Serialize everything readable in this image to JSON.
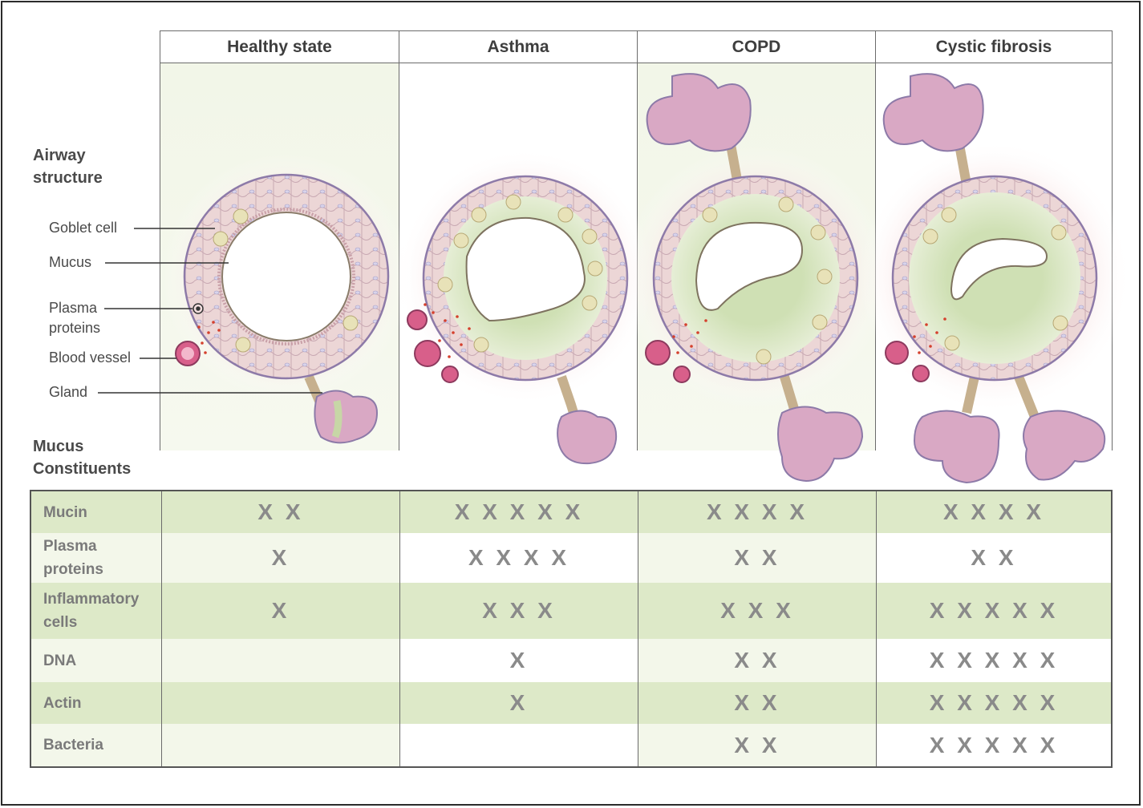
{
  "columns": [
    "Healthy state",
    "Asthma",
    "COPD",
    "Cystic fibrosis"
  ],
  "section_labels": {
    "airway": "Airway\nstructure",
    "constituents": "Mucus\nConstituents"
  },
  "annotations": {
    "goblet": "Goblet cell",
    "mucus": "Mucus",
    "plasma": "Plasma\nproteins",
    "vessel": "Blood vessel",
    "gland": "Gland"
  },
  "colors": {
    "green_dark": "#dde9c8",
    "green_light": "#eef4e0",
    "panel_green": "#f3f7ea",
    "tissue_pink": "#ecd3d3",
    "gland_pink": "#d9a8c4",
    "mucus_green": "#cfe0b4",
    "vessel_red": "#c23a6b"
  },
  "rows": [
    {
      "label": "Mucin",
      "values": [
        "X X",
        "X X X X X",
        "X X X X",
        "X X X X"
      ]
    },
    {
      "label": "Plasma\nproteins",
      "values": [
        "X",
        "X X X X",
        "X X",
        "X X"
      ]
    },
    {
      "label": "Inflammatory\ncells",
      "values": [
        "X",
        "X X X",
        "X X X",
        "X X X X X"
      ]
    },
    {
      "label": "DNA",
      "values": [
        "",
        "X",
        "X X",
        "X X X X X"
      ]
    },
    {
      "label": "Actin",
      "values": [
        "",
        "X",
        "X X",
        "X X X X X"
      ]
    },
    {
      "label": "Bacteria",
      "values": [
        "",
        "",
        "X X",
        "X X X X X"
      ]
    }
  ]
}
